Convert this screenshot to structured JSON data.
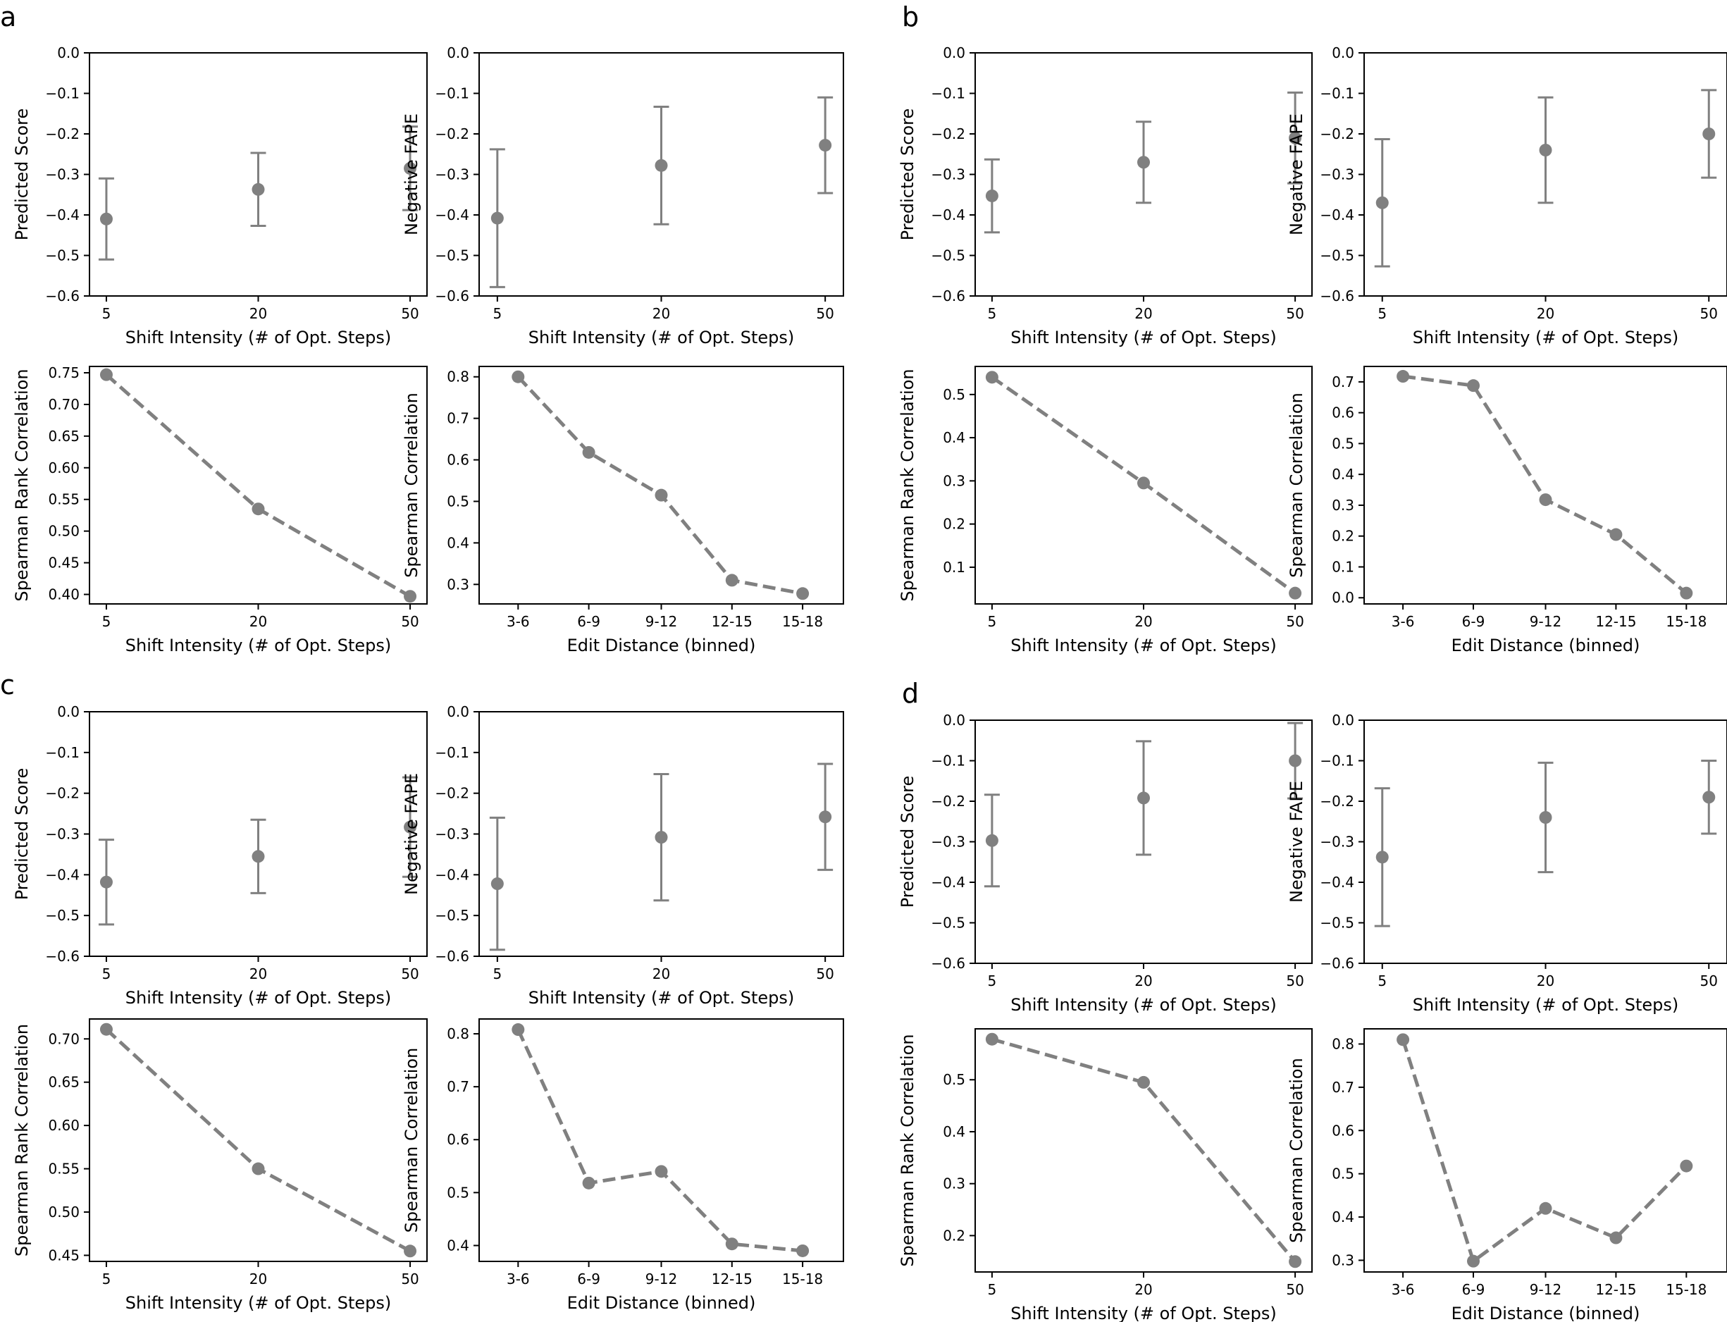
{
  "colors": {
    "marker": "#808080",
    "axes": "#000000",
    "background": "#ffffff"
  },
  "panels": [
    {
      "letter": "a"
    },
    {
      "letter": "b"
    },
    {
      "letter": "c"
    },
    {
      "letter": "d"
    }
  ],
  "chart_data": [
    {
      "panel": "a",
      "type": "scatter",
      "errorbars": true,
      "x": [
        "5",
        "20",
        "50"
      ],
      "y": [
        -0.41,
        -0.337,
        -0.285
      ],
      "yerr": [
        0.1,
        0.09,
        0.103
      ],
      "xlabel": "Shift Intensity (# of Opt. Steps)",
      "ylabel": "Predicted Score",
      "ylim": [
        -0.6,
        0.0
      ],
      "yticks": [
        "0.0",
        "−0.1",
        "−0.2",
        "−0.3",
        "−0.4",
        "−0.5",
        "−0.6"
      ]
    },
    {
      "panel": "a",
      "type": "scatter",
      "errorbars": true,
      "x": [
        "5",
        "20",
        "50"
      ],
      "y": [
        -0.408,
        -0.278,
        -0.228
      ],
      "yerr": [
        0.17,
        0.145,
        0.118
      ],
      "xlabel": "Shift Intensity (# of Opt. Steps)",
      "ylabel": "Negative FAPE",
      "ylim": [
        -0.6,
        0.0
      ],
      "yticks": [
        "0.0",
        "−0.1",
        "−0.2",
        "−0.3",
        "−0.4",
        "−0.5",
        "−0.6"
      ]
    },
    {
      "panel": "a",
      "type": "line",
      "x": [
        "5",
        "20",
        "50"
      ],
      "y": [
        0.747,
        0.535,
        0.397
      ],
      "xlabel": "Shift Intensity (# of Opt. Steps)",
      "ylabel": "Spearman Rank Correlation",
      "ylim": [
        0.385,
        0.76
      ],
      "yticks": [
        "0.40",
        "0.45",
        "0.50",
        "0.55",
        "0.60",
        "0.65",
        "0.70",
        "0.75"
      ]
    },
    {
      "panel": "a",
      "type": "line",
      "x": [
        "3-6",
        "6-9",
        "9-12",
        "12-15",
        "15-18"
      ],
      "y": [
        0.8,
        0.618,
        0.515,
        0.31,
        0.278
      ],
      "xlabel": "Edit Distance (binned)",
      "ylabel": "Spearman Correlation",
      "ylim": [
        0.253,
        0.825
      ],
      "yticks": [
        "0.3",
        "0.4",
        "0.5",
        "0.6",
        "0.7",
        "0.8"
      ]
    },
    {
      "panel": "b",
      "type": "scatter",
      "errorbars": true,
      "x": [
        "5",
        "20",
        "50"
      ],
      "y": [
        -0.353,
        -0.27,
        -0.21
      ],
      "yerr": [
        0.09,
        0.1,
        0.112
      ],
      "xlabel": "Shift Intensity (# of Opt. Steps)",
      "ylabel": "Predicted Score",
      "ylim": [
        -0.6,
        0.0
      ],
      "yticks": [
        "0.0",
        "−0.1",
        "−0.2",
        "−0.3",
        "−0.4",
        "−0.5",
        "−0.6"
      ]
    },
    {
      "panel": "b",
      "type": "scatter",
      "errorbars": true,
      "x": [
        "5",
        "20",
        "50"
      ],
      "y": [
        -0.37,
        -0.24,
        -0.2
      ],
      "yerr": [
        0.157,
        0.13,
        0.108
      ],
      "xlabel": "Shift Intensity (# of Opt. Steps)",
      "ylabel": "Negative FAPE",
      "ylim": [
        -0.6,
        0.0
      ],
      "yticks": [
        "0.0",
        "−0.1",
        "−0.2",
        "−0.3",
        "−0.4",
        "−0.5",
        "−0.6"
      ]
    },
    {
      "panel": "b",
      "type": "line",
      "x": [
        "5",
        "20",
        "50"
      ],
      "y": [
        0.54,
        0.295,
        0.04
      ],
      "xlabel": "Shift Intensity (# of Opt. Steps)",
      "ylabel": "Spearman Rank Correlation",
      "ylim": [
        0.015,
        0.565
      ],
      "yticks": [
        "0.1",
        "0.2",
        "0.3",
        "0.4",
        "0.5"
      ]
    },
    {
      "panel": "b",
      "type": "line",
      "x": [
        "3-6",
        "6-9",
        "9-12",
        "12-15",
        "15-18"
      ],
      "y": [
        0.718,
        0.688,
        0.318,
        0.205,
        0.015
      ],
      "xlabel": "Edit Distance (binned)",
      "ylabel": "Spearman Correlation",
      "ylim": [
        -0.02,
        0.75
      ],
      "yticks": [
        "0.0",
        "0.1",
        "0.2",
        "0.3",
        "0.4",
        "0.5",
        "0.6",
        "0.7"
      ]
    },
    {
      "panel": "c",
      "type": "scatter",
      "errorbars": true,
      "x": [
        "5",
        "20",
        "50"
      ],
      "y": [
        -0.418,
        -0.355,
        -0.283
      ],
      "yerr": [
        0.104,
        0.09,
        0.122
      ],
      "xlabel": "Shift Intensity (# of Opt. Steps)",
      "ylabel": "Predicted Score",
      "ylim": [
        -0.6,
        0.0
      ],
      "yticks": [
        "0.0",
        "−0.1",
        "−0.2",
        "−0.3",
        "−0.4",
        "−0.5",
        "−0.6"
      ]
    },
    {
      "panel": "c",
      "type": "scatter",
      "errorbars": true,
      "x": [
        "5",
        "20",
        "50"
      ],
      "y": [
        -0.422,
        -0.308,
        -0.258
      ],
      "yerr": [
        0.162,
        0.155,
        0.13
      ],
      "xlabel": "Shift Intensity (# of Opt. Steps)",
      "ylabel": "Negative FAPE",
      "ylim": [
        -0.6,
        0.0
      ],
      "yticks": [
        "0.0",
        "−0.1",
        "−0.2",
        "−0.3",
        "−0.4",
        "−0.5",
        "−0.6"
      ]
    },
    {
      "panel": "c",
      "type": "line",
      "x": [
        "5",
        "20",
        "50"
      ],
      "y": [
        0.711,
        0.55,
        0.455
      ],
      "xlabel": "Shift Intensity (# of Opt. Steps)",
      "ylabel": "Spearman Rank Correlation",
      "ylim": [
        0.443,
        0.723
      ],
      "yticks": [
        "0.45",
        "0.50",
        "0.55",
        "0.60",
        "0.65",
        "0.70"
      ]
    },
    {
      "panel": "c",
      "type": "line",
      "x": [
        "3-6",
        "6-9",
        "9-12",
        "12-15",
        "15-18"
      ],
      "y": [
        0.808,
        0.518,
        0.54,
        0.403,
        0.39
      ],
      "xlabel": "Edit Distance (binned)",
      "ylabel": "Spearman Correlation",
      "ylim": [
        0.37,
        0.828
      ],
      "yticks": [
        "0.4",
        "0.5",
        "0.6",
        "0.7",
        "0.8"
      ]
    },
    {
      "panel": "d",
      "type": "scatter",
      "errorbars": true,
      "x": [
        "5",
        "20",
        "50"
      ],
      "y": [
        -0.297,
        -0.192,
        -0.1
      ],
      "yerr": [
        0.113,
        0.14,
        0.093
      ],
      "xlabel": "Shift Intensity (# of Opt. Steps)",
      "ylabel": "Predicted Score",
      "ylim": [
        -0.6,
        0.0
      ],
      "yticks": [
        "0.0",
        "−0.1",
        "−0.2",
        "−0.3",
        "−0.4",
        "−0.5",
        "−0.6"
      ]
    },
    {
      "panel": "d",
      "type": "scatter",
      "errorbars": true,
      "x": [
        "5",
        "20",
        "50"
      ],
      "y": [
        -0.338,
        -0.24,
        -0.19
      ],
      "yerr": [
        0.17,
        0.135,
        0.09
      ],
      "xlabel": "Shift Intensity (# of Opt. Steps)",
      "ylabel": "Negative FAPE",
      "ylim": [
        -0.6,
        0.0
      ],
      "yticks": [
        "0.0",
        "−0.1",
        "−0.2",
        "−0.3",
        "−0.4",
        "−0.5",
        "−0.6"
      ]
    },
    {
      "panel": "d",
      "type": "line",
      "x": [
        "5",
        "20",
        "50"
      ],
      "y": [
        0.578,
        0.495,
        0.15
      ],
      "xlabel": "Shift Intensity (# of Opt. Steps)",
      "ylabel": "Spearman Rank Correlation",
      "ylim": [
        0.13,
        0.598
      ],
      "yticks": [
        "0.2",
        "0.3",
        "0.4",
        "0.5"
      ]
    },
    {
      "panel": "d",
      "type": "line",
      "x": [
        "3-6",
        "6-9",
        "9-12",
        "12-15",
        "15-18"
      ],
      "y": [
        0.81,
        0.298,
        0.42,
        0.352,
        0.518
      ],
      "xlabel": "Edit Distance (binned)",
      "ylabel": "Spearman Correlation",
      "ylim": [
        0.273,
        0.835
      ],
      "yticks": [
        "0.3",
        "0.4",
        "0.5",
        "0.6",
        "0.7",
        "0.8"
      ]
    }
  ]
}
